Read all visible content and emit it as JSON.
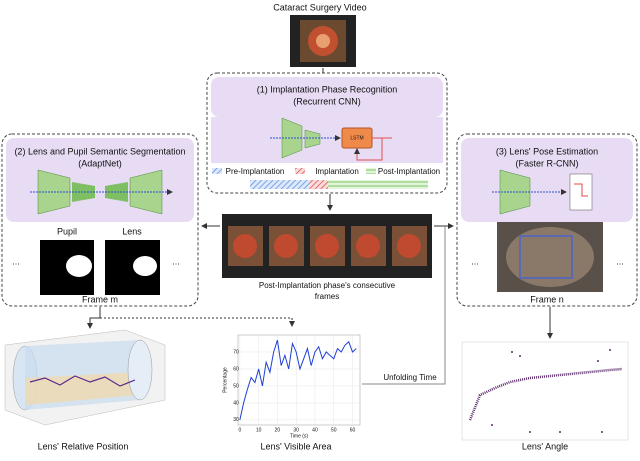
{
  "header": {
    "title": "Cataract Surgery Video"
  },
  "phase_recognition": {
    "title": "(1) Implantation Phase Recognition",
    "subtitle": "(Recurrent CNN)",
    "lstm": "LSTM",
    "legend": [
      "Pre-Implantation",
      "Implantation",
      "Post-Implantation"
    ]
  },
  "segmentation": {
    "title": "(2) Lens and Pupil Semantic Segmentation",
    "subtitle": "(AdaptNet)",
    "labels": [
      "Pupil",
      "Lens"
    ],
    "frame": "Frame m",
    "ellipsis": "..."
  },
  "pose": {
    "title": "(3) Lens' Pose Estimation",
    "subtitle": "(Faster R-CNN)",
    "frame": "Frame n",
    "ellipsis": "..."
  },
  "frames": {
    "caption": [
      "Post-Implantation phase's consecutive",
      "frames"
    ]
  },
  "outputs": {
    "position": "Lens' Relative Position",
    "angle": "Lens' Angle",
    "unfolding": "Unfolding Time"
  },
  "chart_data": {
    "type": "line",
    "title": "Lens' Visible Area",
    "x_label": "Time (s)",
    "y_label": "Percentage",
    "x": [
      0,
      2,
      4,
      6,
      8,
      10,
      12,
      14,
      16,
      18,
      20,
      22,
      24,
      26,
      28,
      30,
      32,
      34,
      36,
      38,
      40,
      42,
      44,
      46,
      48,
      50,
      52,
      54,
      56,
      58,
      60,
      62
    ],
    "series": [
      {
        "name": "Visible area",
        "color": "#1f3fd8",
        "values": [
          30,
          40,
          48,
          55,
          52,
          60,
          50,
          64,
          58,
          70,
          77,
          62,
          68,
          60,
          75,
          70,
          60,
          66,
          72,
          62,
          70,
          73,
          66,
          70,
          68,
          66,
          72,
          70,
          74,
          76,
          70,
          72
        ]
      }
    ],
    "xlim": [
      -1,
      64
    ],
    "ylim": [
      27,
      80
    ],
    "xticks": [
      0,
      10,
      20,
      30,
      40,
      50,
      60
    ],
    "yticks": [
      30,
      40,
      50,
      60,
      70
    ],
    "grid": true
  }
}
